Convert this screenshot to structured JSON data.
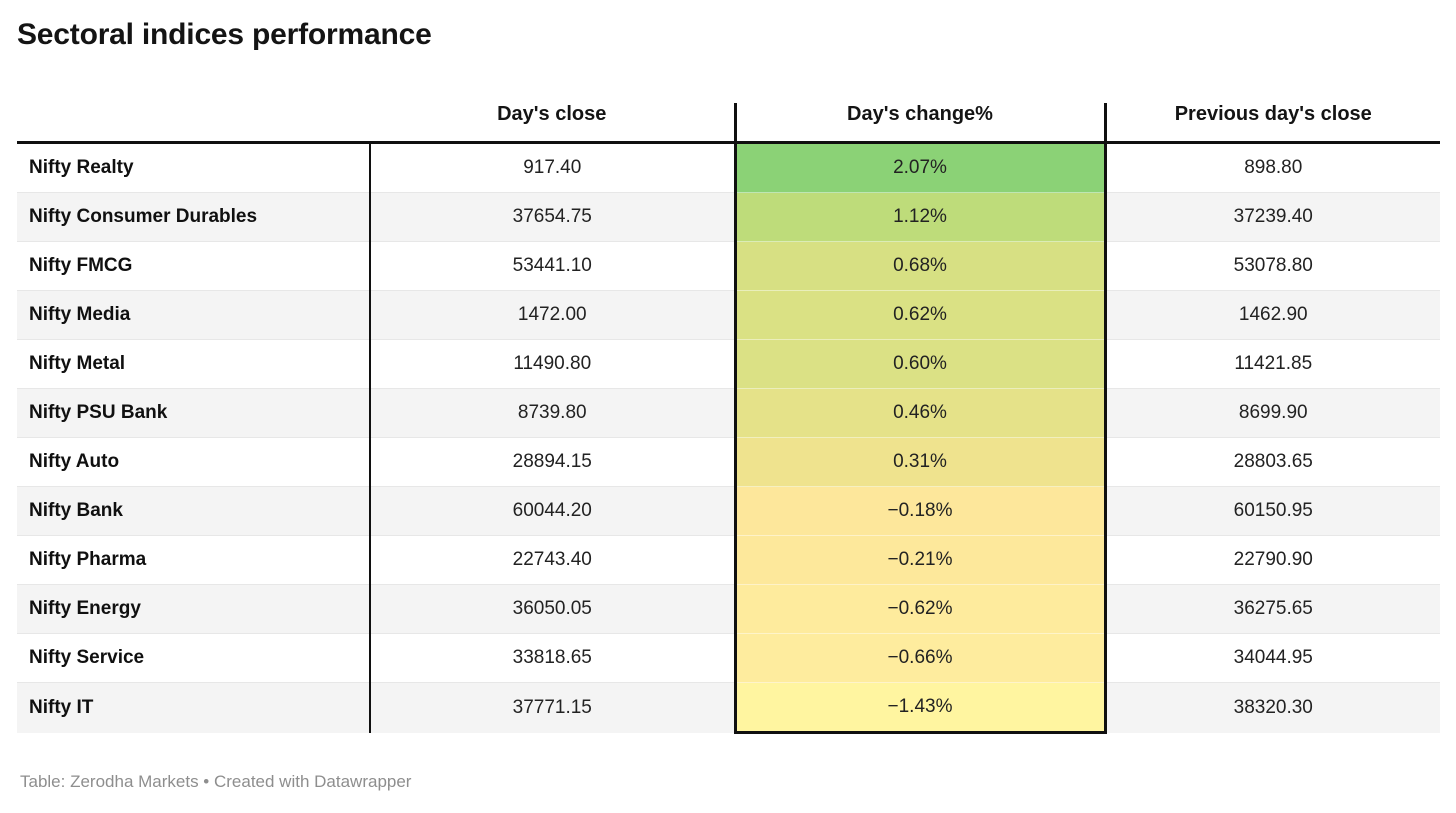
{
  "title": "Sectoral indices performance",
  "footer": "Table: Zerodha Markets • Created with Datawrapper",
  "colors": {
    "border_dark": "#101010",
    "row_alt_background": "#f4f4f4",
    "footer_text": "#8e8e8e",
    "heatmap_max_green": "#8bd276",
    "heatmap_min_yellow": "#fff5a0"
  },
  "chart_data": {
    "type": "table",
    "title": "Sectoral indices performance",
    "columns": [
      "",
      "Day's close",
      "Day's change%",
      "Previous day's close"
    ],
    "legend_note": "Day's change% column is heat-colored from green (highest) to pale yellow (lowest)",
    "rows": [
      {
        "label": "Nifty Realty",
        "close": "917.40",
        "change": "2.07%",
        "prev_close": "898.80",
        "change_value": 2.07,
        "change_color": "#8bd276"
      },
      {
        "label": "Nifty Consumer Durables",
        "close": "37654.75",
        "change": "1.12%",
        "prev_close": "37239.40",
        "change_value": 1.12,
        "change_color": "#bedc7a"
      },
      {
        "label": "Nifty FMCG",
        "close": "53441.10",
        "change": "0.68%",
        "prev_close": "53078.80",
        "change_value": 0.68,
        "change_color": "#d7e083"
      },
      {
        "label": "Nifty Media",
        "close": "1472.00",
        "change": "0.62%",
        "prev_close": "1462.90",
        "change_value": 0.62,
        "change_color": "#dae184"
      },
      {
        "label": "Nifty Metal",
        "close": "11490.80",
        "change": "0.60%",
        "prev_close": "11421.85",
        "change_value": 0.6,
        "change_color": "#dbe185"
      },
      {
        "label": "Nifty PSU Bank",
        "close": "8739.80",
        "change": "0.46%",
        "prev_close": "8699.90",
        "change_value": 0.46,
        "change_color": "#e5e289"
      },
      {
        "label": "Nifty Auto",
        "close": "28894.15",
        "change": "0.31%",
        "prev_close": "28803.65",
        "change_value": 0.31,
        "change_color": "#efe38e"
      },
      {
        "label": "Nifty Bank",
        "close": "60044.20",
        "change": "−0.18%",
        "prev_close": "60150.95",
        "change_value": -0.18,
        "change_color": "#fde79b"
      },
      {
        "label": "Nifty Pharma",
        "close": "22743.40",
        "change": "−0.21%",
        "prev_close": "22790.90",
        "change_value": -0.21,
        "change_color": "#fde89b"
      },
      {
        "label": "Nifty Energy",
        "close": "36050.05",
        "change": "−0.62%",
        "prev_close": "36275.65",
        "change_value": -0.62,
        "change_color": "#feeb9d"
      },
      {
        "label": "Nifty Service",
        "close": "33818.65",
        "change": "−0.66%",
        "prev_close": "34044.95",
        "change_value": -0.66,
        "change_color": "#feec9e"
      },
      {
        "label": "Nifty IT",
        "close": "37771.15",
        "change": "−1.43%",
        "prev_close": "38320.30",
        "change_value": -1.43,
        "change_color": "#fff5a0"
      }
    ]
  }
}
